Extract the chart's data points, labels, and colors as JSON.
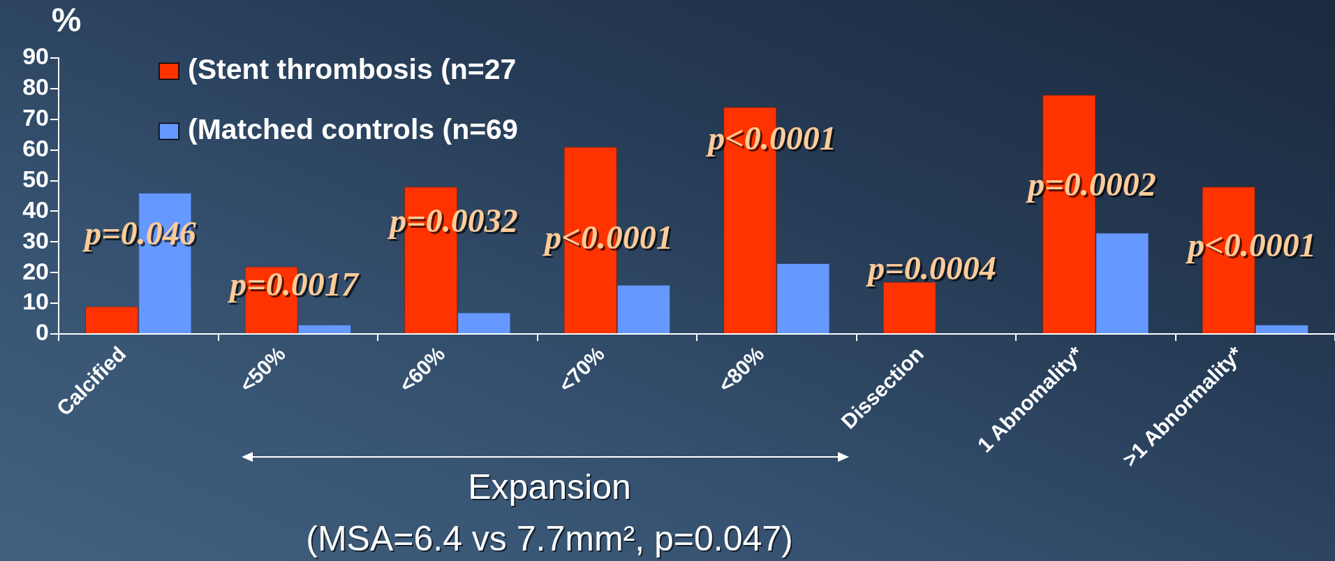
{
  "chart_data": {
    "type": "bar",
    "ylabel": "%",
    "categories": [
      "Calcified",
      "<50%",
      "<60%",
      "<70%",
      "<80%",
      "Dissection",
      "1 Abnomality*",
      ">1 Abnormality*"
    ],
    "series": [
      {
        "name": "(Stent thrombosis (n=27",
        "color": "#ff3300",
        "values": [
          9,
          22,
          48,
          61,
          74,
          17,
          78,
          48
        ]
      },
      {
        "name": "(Matched controls (n=69",
        "color": "#6699ff",
        "values": [
          46,
          3,
          7,
          16,
          23,
          null,
          33,
          3
        ]
      }
    ],
    "ylim": [
      0,
      90
    ],
    "yticks": [
      0,
      10,
      20,
      30,
      40,
      50,
      60,
      70,
      80,
      90
    ],
    "grid": false,
    "legend": "top left",
    "annotations": [
      "p=0.046",
      "p=0.0017",
      "p=0.0032",
      "p<0.0001",
      "p<0.0001",
      "p=0.0004",
      "p=0.0002",
      "p<0.0001",
      "Expansion",
      "(MSA=6.4 vs 7.7mm², p=0.047)"
    ]
  }
}
